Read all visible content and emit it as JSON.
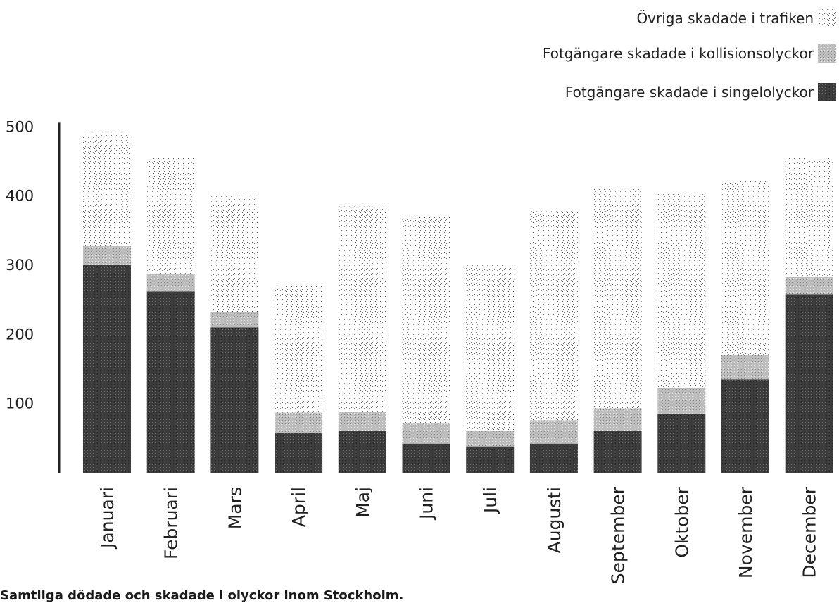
{
  "caption": "Samtliga dödade och skadade i olyckor inom Stockholm.",
  "chart_data": {
    "type": "bar",
    "stacked": true,
    "title": "",
    "xlabel": "",
    "ylabel": "",
    "ylim": [
      0,
      500
    ],
    "yticks": [
      100,
      200,
      300,
      400,
      500
    ],
    "categories": [
      "Januari",
      "Februari",
      "Mars",
      "April",
      "Maj",
      "Juni",
      "Juli",
      "Augusti",
      "September",
      "Oktober",
      "November",
      "December"
    ],
    "series": [
      {
        "name": "Fotgängare skadade i singelolyckor",
        "color": "#3d3d3d",
        "values": [
          300,
          262,
          210,
          57,
          60,
          42,
          38,
          42,
          60,
          85,
          135,
          258
        ]
      },
      {
        "name": "Fotgängare skadade i kollisionsolyckor",
        "color": "#b9b9b9",
        "values": [
          28,
          25,
          22,
          30,
          28,
          30,
          22,
          34,
          33,
          38,
          35,
          25
        ]
      },
      {
        "name": "Övriga skadade i trafiken",
        "color": "#f4f4f4",
        "values": [
          162,
          168,
          168,
          183,
          297,
          298,
          240,
          302,
          317,
          282,
          252,
          172
        ]
      }
    ],
    "legend": {
      "position": "top-right",
      "order": [
        2,
        1,
        0
      ]
    },
    "grid": false
  }
}
